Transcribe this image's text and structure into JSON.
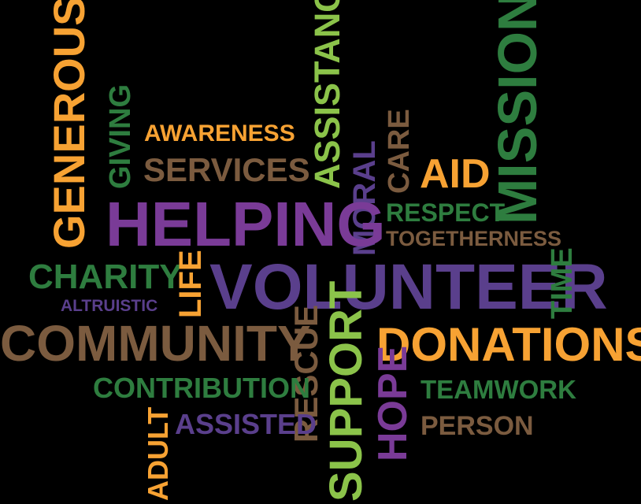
{
  "palette": {
    "orange": "#F7A233",
    "green": "#2E7D3F",
    "brown": "#7B5B3F",
    "purple": "#7A3B97",
    "lime": "#8BC34A",
    "indigo": "#5A3F8C",
    "background": "#000000"
  },
  "words": {
    "generous": {
      "text": "GENEROUS",
      "color": "#F7A233"
    },
    "giving": {
      "text": "GIVING",
      "color": "#2E7D3F"
    },
    "awareness": {
      "text": "AWARENESS",
      "color": "#F7A233"
    },
    "services": {
      "text": "SERVICES",
      "color": "#7B5B3F"
    },
    "assistance": {
      "text": "ASSISTANCE",
      "color": "#8BC34A"
    },
    "moral": {
      "text": "MORAL",
      "color": "#5A3F8C"
    },
    "care": {
      "text": "CARE",
      "color": "#7B5B3F"
    },
    "aid": {
      "text": "AID",
      "color": "#F7A233"
    },
    "mission": {
      "text": "MISSION",
      "color": "#2E7D3F"
    },
    "helping": {
      "text": "HELPING",
      "color": "#7A3B97"
    },
    "respect": {
      "text": "RESPECT",
      "color": "#2E7D3F"
    },
    "togetherness": {
      "text": "TOGETHERNESS",
      "color": "#7B5B3F"
    },
    "charity": {
      "text": "CHARITY",
      "color": "#2E7D3F"
    },
    "altruistic": {
      "text": "ALTRUISTIC",
      "color": "#5A3F8C"
    },
    "life": {
      "text": "LIFE",
      "color": "#F7A233"
    },
    "volunteer": {
      "text": "VOLUNTEER",
      "color": "#5A3F8C"
    },
    "time": {
      "text": "TIME",
      "color": "#2E7D3F"
    },
    "community": {
      "text": "COMMUNITY",
      "color": "#7B5B3F"
    },
    "rescue": {
      "text": "RESCUE",
      "color": "#7B5B3F"
    },
    "support": {
      "text": "SUPPORT",
      "color": "#8BC34A"
    },
    "donations": {
      "text": "DONATIONS",
      "color": "#F7A233"
    },
    "contribution": {
      "text": "CONTRIBUTION",
      "color": "#2E7D3F"
    },
    "hope": {
      "text": "HOPE",
      "color": "#7A3B97"
    },
    "teamwork": {
      "text": "TEAMWORK",
      "color": "#2E7D3F"
    },
    "adult": {
      "text": "ADULT",
      "color": "#F7A233"
    },
    "assisted": {
      "text": "ASSISTED",
      "color": "#5A3F8C"
    },
    "person": {
      "text": "PERSON",
      "color": "#7B5B3F"
    }
  }
}
